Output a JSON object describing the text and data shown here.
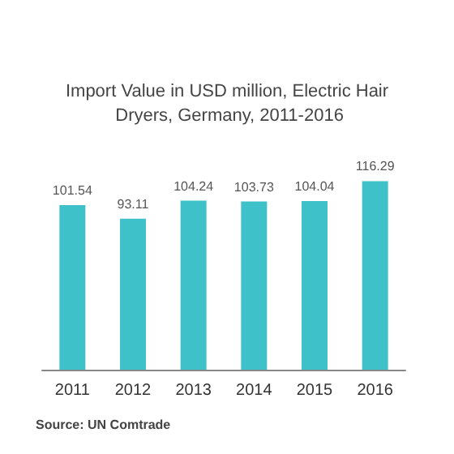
{
  "chart_data": {
    "type": "bar",
    "title": "Import Value in USD million, Electric Hair Dryers, Germany, 2011-2016",
    "categories": [
      "2011",
      "2012",
      "2013",
      "2014",
      "2015",
      "2016"
    ],
    "values": [
      101.54,
      93.11,
      104.24,
      103.73,
      104.04,
      116.29
    ],
    "color": "#3fc1c9",
    "data_labels": true,
    "annotations": [
      "Source: UN Comtrade"
    ]
  }
}
